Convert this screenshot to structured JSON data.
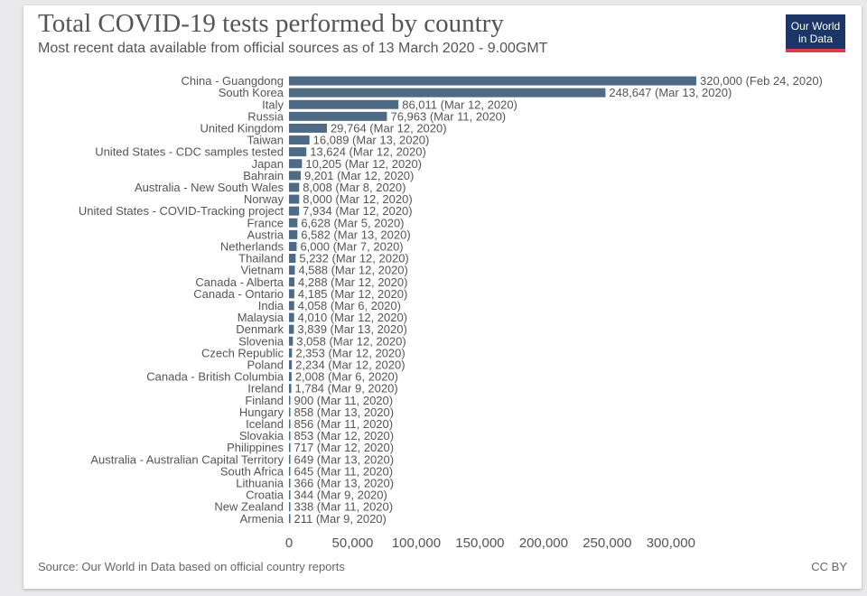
{
  "title": "Total COVID-19 tests performed by country",
  "subtitle": "Most recent data available from official sources as of 13 March 2020 - 9.00GMT",
  "logo": {
    "line1": "Our World",
    "line2": "in Data"
  },
  "source": "Source: Our World in Data based on official country reports",
  "license": "CC BY",
  "colors": {
    "bar": "#4e6a85",
    "text": "#555555"
  },
  "chart_data": {
    "type": "bar",
    "orientation": "horizontal",
    "title": "Total COVID-19 tests performed by country",
    "xlim": [
      0,
      320000
    ],
    "x_ticks": [
      0,
      50000,
      100000,
      150000,
      200000,
      250000,
      300000
    ],
    "x_tick_labels": [
      "0",
      "50,000",
      "100,000",
      "150,000",
      "200,000",
      "250,000",
      "300,000"
    ],
    "grid": false,
    "categories": [
      "China - Guangdong",
      "South Korea",
      "Italy",
      "Russia",
      "United Kingdom",
      "Taiwan",
      "United States - CDC samples tested",
      "Japan",
      "Bahrain",
      "Australia - New South Wales",
      "Norway",
      "United States - COVID-Tracking project",
      "France",
      "Austria",
      "Netherlands",
      "Thailand",
      "Vietnam",
      "Canada - Alberta",
      "Canada - Ontario",
      "India",
      "Malaysia",
      "Denmark",
      "Slovenia",
      "Czech Republic",
      "Poland",
      "Canada - British Columbia",
      "Ireland",
      "Finland",
      "Hungary",
      "Iceland",
      "Slovakia",
      "Philippines",
      "Australia - Australian Capital Territory",
      "South Africa",
      "Lithuania",
      "Croatia",
      "New Zealand",
      "Armenia"
    ],
    "values": [
      320000,
      248647,
      86011,
      76963,
      29764,
      16089,
      13624,
      10205,
      9201,
      8008,
      8000,
      7934,
      6628,
      6582,
      6000,
      5232,
      4588,
      4288,
      4185,
      4058,
      4010,
      3839,
      3058,
      2353,
      2234,
      2008,
      1784,
      900,
      858,
      856,
      853,
      717,
      649,
      645,
      366,
      344,
      338,
      211
    ],
    "value_labels": [
      "320,000 (Feb 24, 2020)",
      "248,647 (Mar 13, 2020)",
      "86,011 (Mar 12, 2020)",
      "76,963 (Mar 11, 2020)",
      "29,764 (Mar 12, 2020)",
      "16,089 (Mar 13, 2020)",
      "13,624 (Mar 12, 2020)",
      "10,205 (Mar 12, 2020)",
      "9,201 (Mar 12, 2020)",
      "8,008 (Mar 8, 2020)",
      "8,000 (Mar 12, 2020)",
      "7,934 (Mar 12, 2020)",
      "6,628 (Mar 5, 2020)",
      "6,582 (Mar 13, 2020)",
      "6,000 (Mar 7, 2020)",
      "5,232 (Mar 12, 2020)",
      "4,588 (Mar 12, 2020)",
      "4,288 (Mar 12, 2020)",
      "4,185 (Mar 12, 2020)",
      "4,058 (Mar 6, 2020)",
      "4,010 (Mar 12, 2020)",
      "3,839 (Mar 13, 2020)",
      "3,058 (Mar 12, 2020)",
      "2,353 (Mar 12, 2020)",
      "2,234 (Mar 12, 2020)",
      "2,008 (Mar 6, 2020)",
      "1,784 (Mar 9, 2020)",
      "900 (Mar 11, 2020)",
      "858 (Mar 13, 2020)",
      "856 (Mar 11, 2020)",
      "853 (Mar 12, 2020)",
      "717 (Mar 12, 2020)",
      "649 (Mar 13, 2020)",
      "645 (Mar 11, 2020)",
      "366 (Mar 13, 2020)",
      "344 (Mar 9, 2020)",
      "338 (Mar 11, 2020)",
      "211 (Mar 9, 2020)"
    ]
  }
}
